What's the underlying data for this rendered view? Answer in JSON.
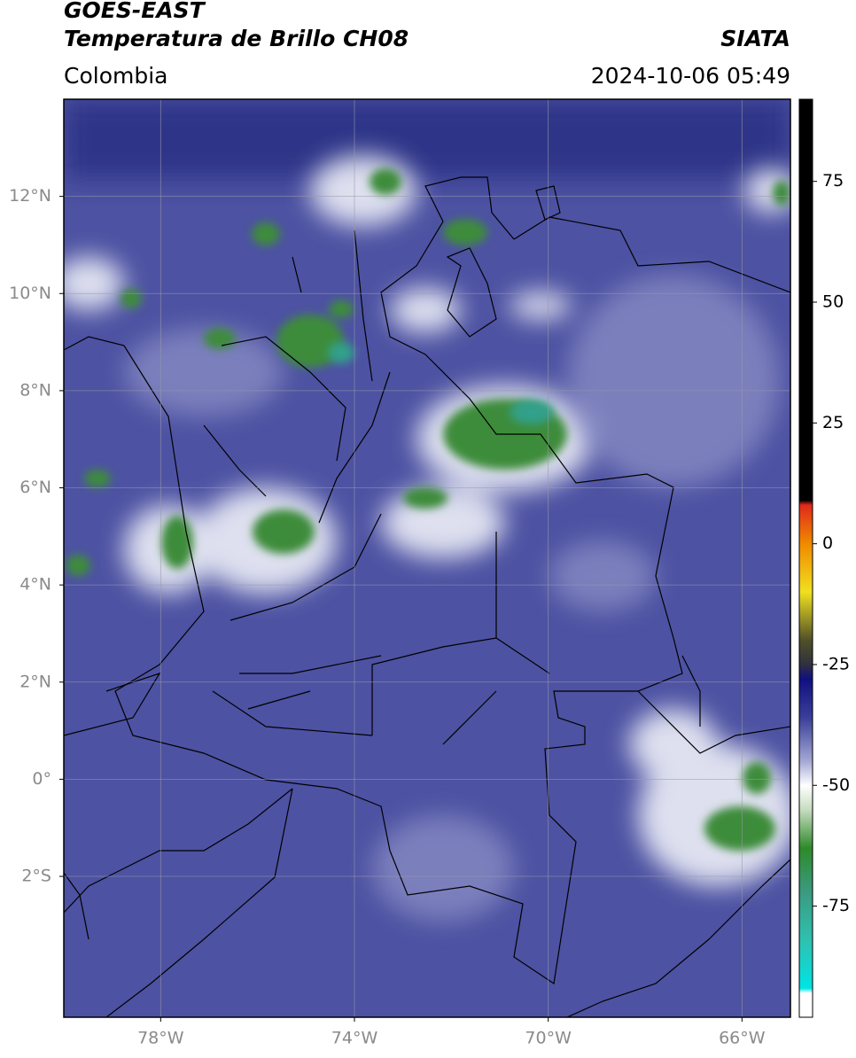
{
  "chart_data": {
    "type": "map",
    "title": "GOES-EAST",
    "subtitle": "Temperatura de Brillo CH08",
    "source": "SIATA",
    "region": "Colombia",
    "datetime": "2024-10-06 05:49",
    "xlim": [
      -80,
      -65
    ],
    "ylim": [
      -4.9,
      14
    ],
    "xticks": [
      {
        "value": -78,
        "label": "78°W"
      },
      {
        "value": -74,
        "label": "74°W"
      },
      {
        "value": -70,
        "label": "70°W"
      },
      {
        "value": -66,
        "label": "66°W"
      }
    ],
    "yticks": [
      {
        "value": 12,
        "label": "12°N"
      },
      {
        "value": 10,
        "label": "10°N"
      },
      {
        "value": 8,
        "label": "8°N"
      },
      {
        "value": 6,
        "label": "6°N"
      },
      {
        "value": 4,
        "label": "4°N"
      },
      {
        "value": 2,
        "label": "2°N"
      },
      {
        "value": 0,
        "label": "0°"
      },
      {
        "value": -2,
        "label": "2°S"
      }
    ],
    "grid": true,
    "colorbar": {
      "clim": [
        -98,
        92
      ],
      "ticks": [
        75,
        50,
        25,
        0,
        -25,
        -50,
        -75
      ],
      "colormap": [
        {
          "value": 92,
          "color": "#000000"
        },
        {
          "value": 9,
          "color": "#000000"
        },
        {
          "value": 8,
          "color": "#e02a1a"
        },
        {
          "value": 0,
          "color": "#f08a00"
        },
        {
          "value": -10,
          "color": "#f0e020"
        },
        {
          "value": -20,
          "color": "#505028"
        },
        {
          "value": -25,
          "color": "#303040"
        },
        {
          "value": -28,
          "color": "#101080"
        },
        {
          "value": -36,
          "color": "#3a3f98"
        },
        {
          "value": -45,
          "color": "#a4a8d4"
        },
        {
          "value": -50,
          "color": "#ffffff"
        },
        {
          "value": -55,
          "color": "#c8dcc0"
        },
        {
          "value": -63,
          "color": "#2e8a2a"
        },
        {
          "value": -72,
          "color": "#3a9a80"
        },
        {
          "value": -82,
          "color": "#30c0b0"
        },
        {
          "value": -92,
          "color": "#00e4e4"
        },
        {
          "value": -93,
          "color": "#ffffff"
        },
        {
          "value": -98,
          "color": "#ffffff"
        }
      ]
    }
  }
}
